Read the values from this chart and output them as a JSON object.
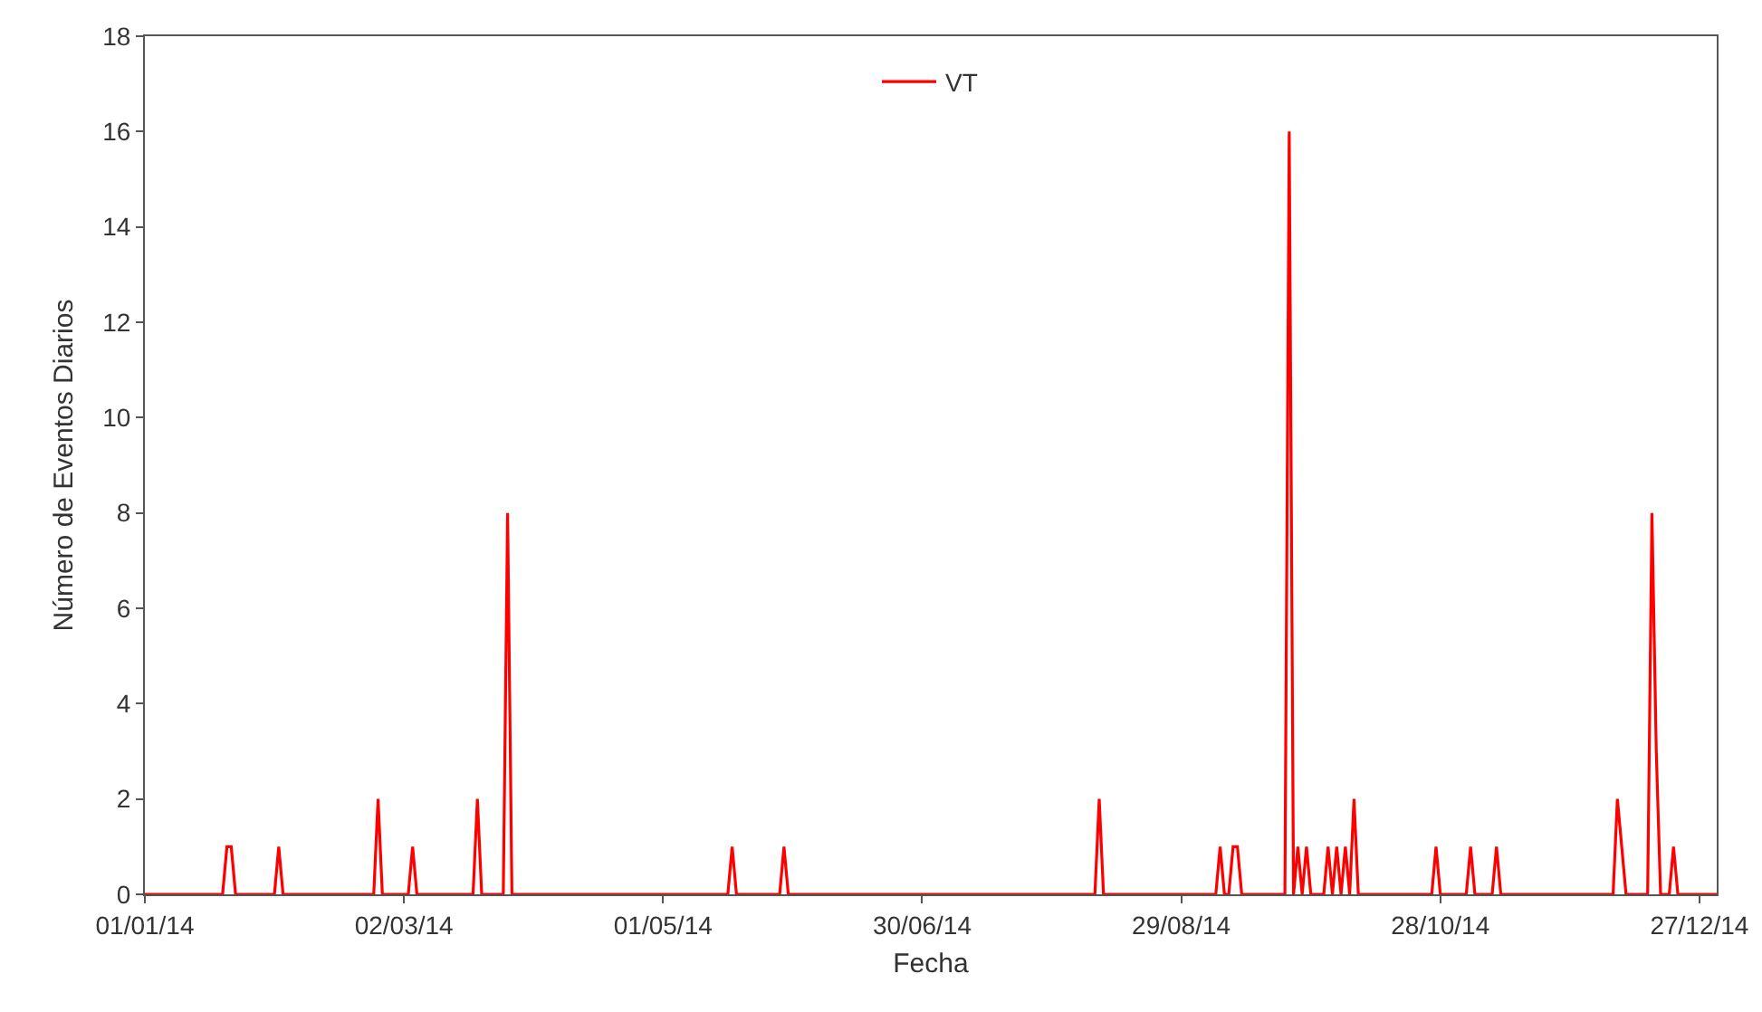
{
  "chart_data": {
    "type": "line",
    "xlabel": "Fecha",
    "ylabel": "Número de Eventos Diarios",
    "x": [
      "2014-01-01",
      "2014-01-19",
      "2014-01-20",
      "2014-01-21",
      "2014-01-22",
      "2014-01-31",
      "2014-02-01",
      "2014-02-02",
      "2014-02-23",
      "2014-02-24",
      "2014-02-25",
      "2014-03-03",
      "2014-03-04",
      "2014-03-05",
      "2014-03-18",
      "2014-03-19",
      "2014-03-20",
      "2014-03-25",
      "2014-03-26",
      "2014-03-27",
      "2014-05-16",
      "2014-05-17",
      "2014-05-18",
      "2014-05-28",
      "2014-05-29",
      "2014-05-30",
      "2014-08-09",
      "2014-08-10",
      "2014-08-11",
      "2014-09-06",
      "2014-09-07",
      "2014-09-08",
      "2014-09-09",
      "2014-09-10",
      "2014-09-11",
      "2014-09-12",
      "2014-09-22",
      "2014-09-23",
      "2014-09-24",
      "2014-09-25",
      "2014-09-26",
      "2014-09-27",
      "2014-09-28",
      "2014-10-01",
      "2014-10-02",
      "2014-10-03",
      "2014-10-04",
      "2014-10-05",
      "2014-10-06",
      "2014-10-07",
      "2014-10-08",
      "2014-10-09",
      "2014-10-26",
      "2014-10-27",
      "2014-10-28",
      "2014-11-03",
      "2014-11-04",
      "2014-11-05",
      "2014-11-09",
      "2014-11-10",
      "2014-11-11",
      "2014-12-07",
      "2014-12-08",
      "2014-12-09",
      "2014-12-10",
      "2014-12-15",
      "2014-12-16",
      "2014-12-17",
      "2014-12-18",
      "2014-12-20",
      "2014-12-21",
      "2014-12-22",
      "2014-12-31"
    ],
    "series": [
      {
        "name": "VT",
        "color": "#ff0000",
        "values": [
          0,
          0,
          1,
          1,
          0,
          0,
          1,
          0,
          0,
          2,
          0,
          0,
          1,
          0,
          0,
          2,
          0,
          0,
          8,
          0,
          0,
          1,
          0,
          0,
          1,
          0,
          0,
          2,
          0,
          0,
          1,
          0,
          0,
          1,
          1,
          0,
          0,
          16,
          0,
          1,
          0,
          1,
          0,
          0,
          1,
          0,
          1,
          0,
          1,
          0,
          2,
          0,
          0,
          1,
          0,
          0,
          1,
          0,
          0,
          1,
          0,
          0,
          2,
          1,
          0,
          0,
          8,
          3,
          0,
          0,
          1,
          0,
          0
        ]
      }
    ],
    "xlim": [
      "2014-01-01",
      "2014-12-31"
    ],
    "xticks": [
      {
        "value": "2014-01-01",
        "label": "01/01/14"
      },
      {
        "value": "2014-03-02",
        "label": "02/03/14"
      },
      {
        "value": "2014-05-01",
        "label": "01/05/14"
      },
      {
        "value": "2014-06-30",
        "label": "30/06/14"
      },
      {
        "value": "2014-08-29",
        "label": "29/08/14"
      },
      {
        "value": "2014-10-28",
        "label": "28/10/14"
      },
      {
        "value": "2014-12-27",
        "label": "27/12/14"
      }
    ],
    "ylim": [
      0,
      18
    ],
    "yticks": [
      0,
      2,
      4,
      6,
      8,
      10,
      12,
      14,
      16,
      18
    ],
    "grid": false,
    "legend": "top",
    "marker": "none",
    "line_style": "solid"
  }
}
